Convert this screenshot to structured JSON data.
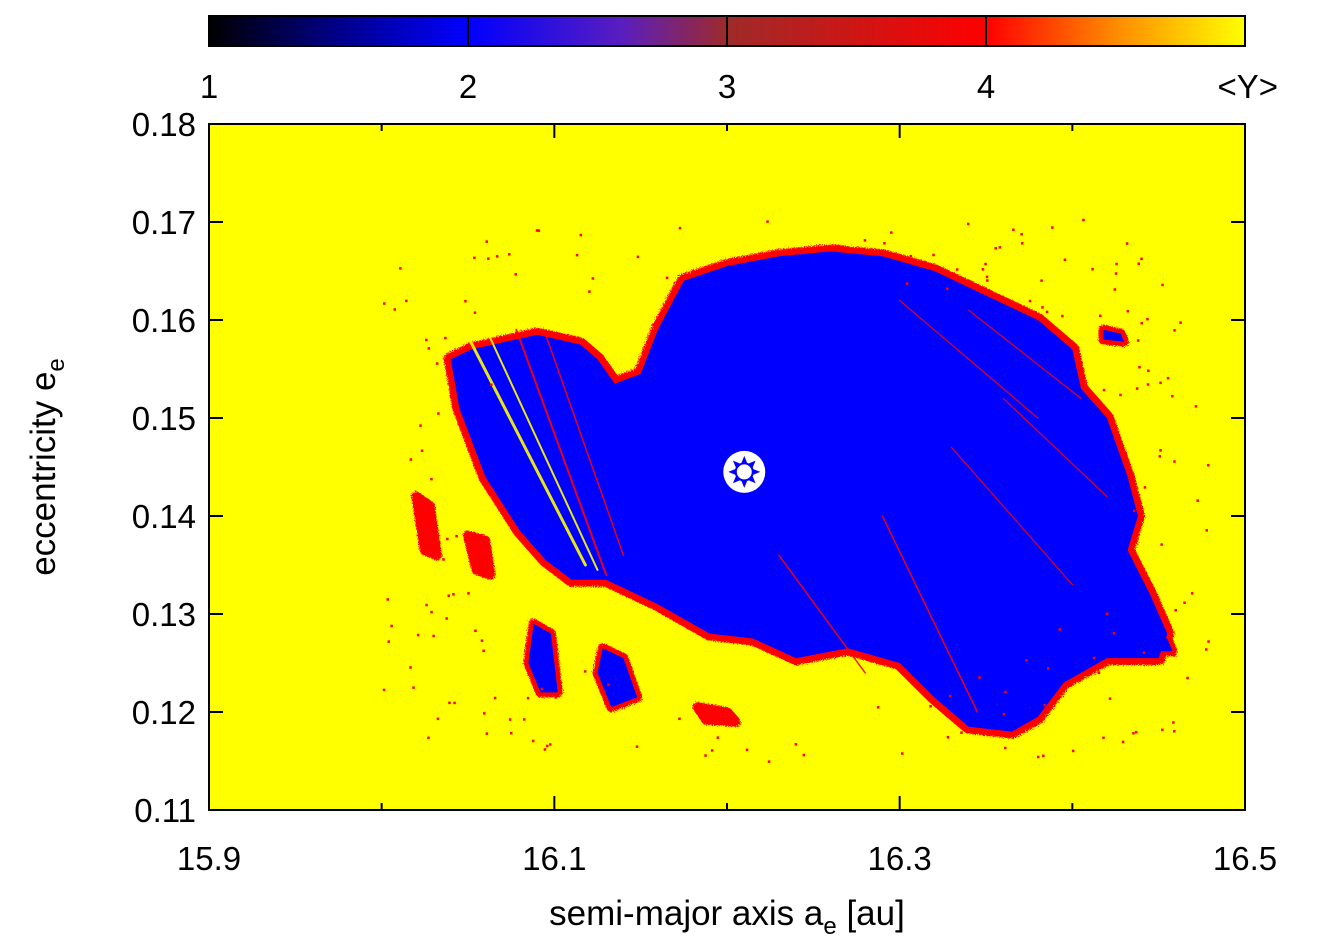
{
  "chart_data": {
    "type": "heatmap",
    "title": "",
    "xlabel": {
      "prefix": "semi-major axis a",
      "subscript": "e",
      "suffix": " [au]"
    },
    "ylabel": {
      "prefix": "eccentricity e",
      "subscript": "e"
    },
    "xlim": [
      15.9,
      16.5
    ],
    "ylim": [
      0.11,
      0.18
    ],
    "x_ticks": [
      15.9,
      16.1,
      16.3,
      16.5
    ],
    "x_tick_labels": [
      "15.9",
      "16.1",
      "16.3",
      "16.5"
    ],
    "x_minor_ticks": [
      16.0,
      16.2,
      16.4
    ],
    "y_ticks": [
      0.11,
      0.12,
      0.13,
      0.14,
      0.15,
      0.16,
      0.17,
      0.18
    ],
    "y_tick_labels": [
      "0.11",
      "0.12",
      "0.13",
      "0.14",
      "0.15",
      "0.16",
      "0.17",
      "0.18"
    ],
    "grid": false,
    "colorbar": {
      "placement": "top",
      "quantity": "<Y>",
      "range": [
        1,
        5
      ],
      "ticks": [
        1,
        2,
        3,
        4
      ],
      "tick_labels": [
        "1",
        "2",
        "3",
        "4"
      ],
      "stops": [
        {
          "value": 1.0,
          "color": "#000000"
        },
        {
          "value": 1.5,
          "color": "#00008a"
        },
        {
          "value": 2.0,
          "color": "#0000ff"
        },
        {
          "value": 2.6,
          "color": "#5a1ebe"
        },
        {
          "value": 3.0,
          "color": "#9e2a2a"
        },
        {
          "value": 4.0,
          "color": "#ff0000"
        },
        {
          "value": 4.5,
          "color": "#ff8a00"
        },
        {
          "value": 5.0,
          "color": "#ffff00"
        }
      ]
    },
    "regions": [
      {
        "name": "chaotic background",
        "mean_Y": 5,
        "color": "#ffff00"
      },
      {
        "name": "quasi-periodic stability island",
        "mean_Y": 2,
        "color": "#0000ff"
      }
    ],
    "marker": {
      "name": "nominal orbit",
      "x": 16.21,
      "y": 0.1445
    }
  }
}
